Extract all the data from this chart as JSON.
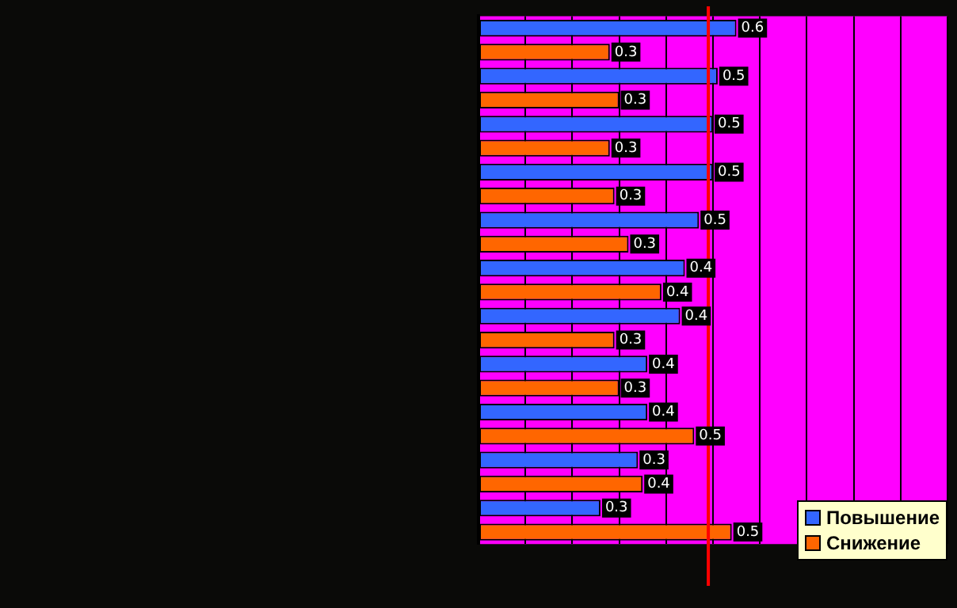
{
  "chart_data": {
    "type": "bar",
    "orientation": "horizontal",
    "categories": [
      null,
      null,
      null,
      null,
      null,
      null,
      null,
      null,
      null,
      null,
      null
    ],
    "series": [
      {
        "name": "Повышение",
        "color": "#3366ff",
        "values": [
          0.55,
          0.51,
          0.5,
          0.5,
          0.47,
          0.44,
          0.43,
          0.36,
          0.36,
          0.34,
          0.26
        ],
        "value_labels": [
          "0.6",
          "0.5",
          "0.5",
          "0.5",
          "0.5",
          "0.4",
          "0.4",
          "0.4",
          "0.4",
          "0.3",
          "0.3"
        ]
      },
      {
        "name": "Снижение",
        "color": "#ff6600",
        "values": [
          0.28,
          0.3,
          0.28,
          0.29,
          0.32,
          0.39,
          0.29,
          0.3,
          0.46,
          0.35,
          0.54
        ],
        "value_labels": [
          "0.3",
          "0.3",
          "0.3",
          "0.3",
          "0.3",
          "0.4",
          "0.3",
          "0.3",
          "0.5",
          "0.4",
          "0.5"
        ]
      }
    ],
    "xlim": [
      0,
      1
    ],
    "xticks": [
      {
        "value": 0,
        "label": null
      },
      {
        "value": 0.1,
        "label": null
      },
      {
        "value": 0.2,
        "label": null
      },
      {
        "value": 0.3,
        "label": null
      },
      {
        "value": 0.4,
        "label": null
      },
      {
        "value": 0.5,
        "label": null
      },
      {
        "value": 0.6,
        "label": null
      },
      {
        "value": 0.7,
        "label": null
      },
      {
        "value": 0.8,
        "label": null
      },
      {
        "value": 0.9,
        "label": null
      },
      {
        "value": 1,
        "label": null
      }
    ],
    "grid": "x",
    "legend": "bottom right",
    "ref_lines": [
      {
        "axis": "x",
        "value": 0.49,
        "color": "#ff0000"
      }
    ]
  }
}
